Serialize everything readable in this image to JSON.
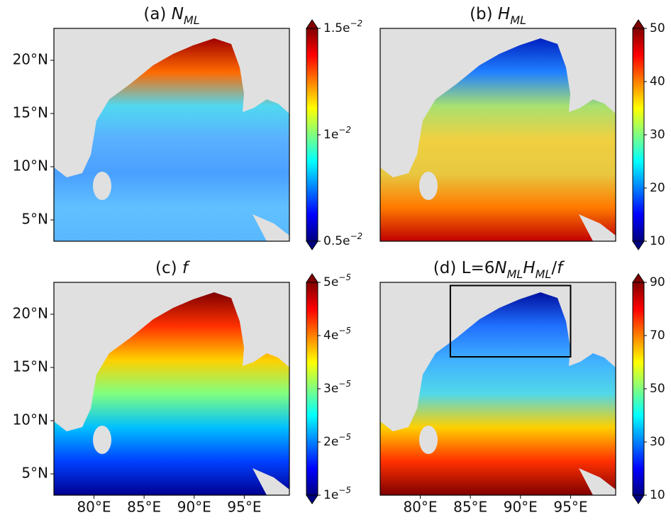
{
  "colormap": "jet",
  "panels": [
    {
      "title": [
        {
          "text": "(a) "
        },
        {
          "text": "N",
          "italic": true
        },
        {
          "text": "ML",
          "italic": true,
          "sub": true
        }
      ],
      "xlim": [
        76,
        99.5
      ],
      "ylim": [
        3,
        23
      ],
      "yticks": [
        {
          "value": 5,
          "label": "5°N"
        },
        {
          "value": 10,
          "label": "10°N"
        },
        {
          "value": 15,
          "label": "15°N"
        },
        {
          "value": 20,
          "label": "20°N"
        }
      ],
      "field_colors": [
        "#a00000",
        "#ff6a00",
        "#50d8f0",
        "#5ab0ff",
        "#4aa0ff",
        "#60c0ff",
        "#5ab8ff"
      ],
      "colorbar": {
        "lim": [
          0.005,
          0.015
        ],
        "ticks": [
          {
            "value": 0.005,
            "label": "0.5e",
            "exponent": "−2"
          },
          {
            "value": 0.01,
            "label": "1e",
            "exponent": "−2"
          },
          {
            "value": 0.015,
            "label": "1.5e",
            "exponent": "−2"
          }
        ]
      }
    },
    {
      "title": [
        {
          "text": "(b) "
        },
        {
          "text": "H",
          "italic": true
        },
        {
          "text": "ML",
          "italic": true,
          "sub": true
        }
      ],
      "xlim": [
        76,
        99.5
      ],
      "ylim": [
        3,
        23
      ],
      "field_colors": [
        "#0020c0",
        "#2080ff",
        "#a8e070",
        "#f0d040",
        "#e8c840",
        "#ff7a00",
        "#c00000"
      ],
      "colorbar": {
        "lim": [
          10,
          50
        ],
        "ticks": [
          10,
          20,
          30,
          40,
          50
        ]
      }
    },
    {
      "title": [
        {
          "text": "(c) "
        },
        {
          "text": "f",
          "italic": true
        }
      ],
      "xlim": [
        76,
        99.5
      ],
      "ylim": [
        3,
        23
      ],
      "yticks": [
        {
          "value": 5,
          "label": "5°N"
        },
        {
          "value": 10,
          "label": "10°N"
        },
        {
          "value": 15,
          "label": "15°N"
        },
        {
          "value": 20,
          "label": "20°N"
        }
      ],
      "xticks": [
        {
          "value": 80,
          "label": "80°E"
        },
        {
          "value": 85,
          "label": "85°E"
        },
        {
          "value": 90,
          "label": "90°E"
        },
        {
          "value": 95,
          "label": "95°E"
        }
      ],
      "field_colors": [
        "#800000",
        "#ff3000",
        "#ffd000",
        "#80ff80",
        "#00c0ff",
        "#0040ff",
        "#000090"
      ],
      "colorbar": {
        "lim": [
          1e-05,
          5e-05
        ],
        "ticks": [
          {
            "value": 1e-05,
            "label": "1e",
            "exponent": "−5"
          },
          {
            "value": 2e-05,
            "label": "2e",
            "exponent": "−5"
          },
          {
            "value": 3e-05,
            "label": "3e",
            "exponent": "−5"
          },
          {
            "value": 4e-05,
            "label": "4e",
            "exponent": "−5"
          },
          {
            "value": 5e-05,
            "label": "5e",
            "exponent": "−5"
          }
        ]
      }
    },
    {
      "title": [
        {
          "text": "(d) L=6"
        },
        {
          "text": "N",
          "italic": true
        },
        {
          "text": "ML",
          "italic": true,
          "sub": true
        },
        {
          "text": "H",
          "italic": true
        },
        {
          "text": "ML",
          "italic": true,
          "sub": true
        },
        {
          "text": "/"
        },
        {
          "text": "f",
          "italic": true
        }
      ],
      "xlim": [
        76,
        99.5
      ],
      "ylim": [
        3,
        23
      ],
      "xticks": [
        {
          "value": 80,
          "label": "80°E"
        },
        {
          "value": 85,
          "label": "85°E"
        },
        {
          "value": 90,
          "label": "90°E"
        },
        {
          "value": 95,
          "label": "95°E"
        }
      ],
      "field_colors": [
        "#0010a0",
        "#2070ff",
        "#40b0ff",
        "#50d8e8",
        "#ffd000",
        "#ff3000",
        "#800000"
      ],
      "box": {
        "lon": [
          83,
          95
        ],
        "lat": [
          16,
          22.7
        ]
      },
      "colorbar": {
        "lim": [
          10,
          90
        ],
        "ticks": [
          10,
          30,
          50,
          70,
          90
        ]
      }
    }
  ]
}
